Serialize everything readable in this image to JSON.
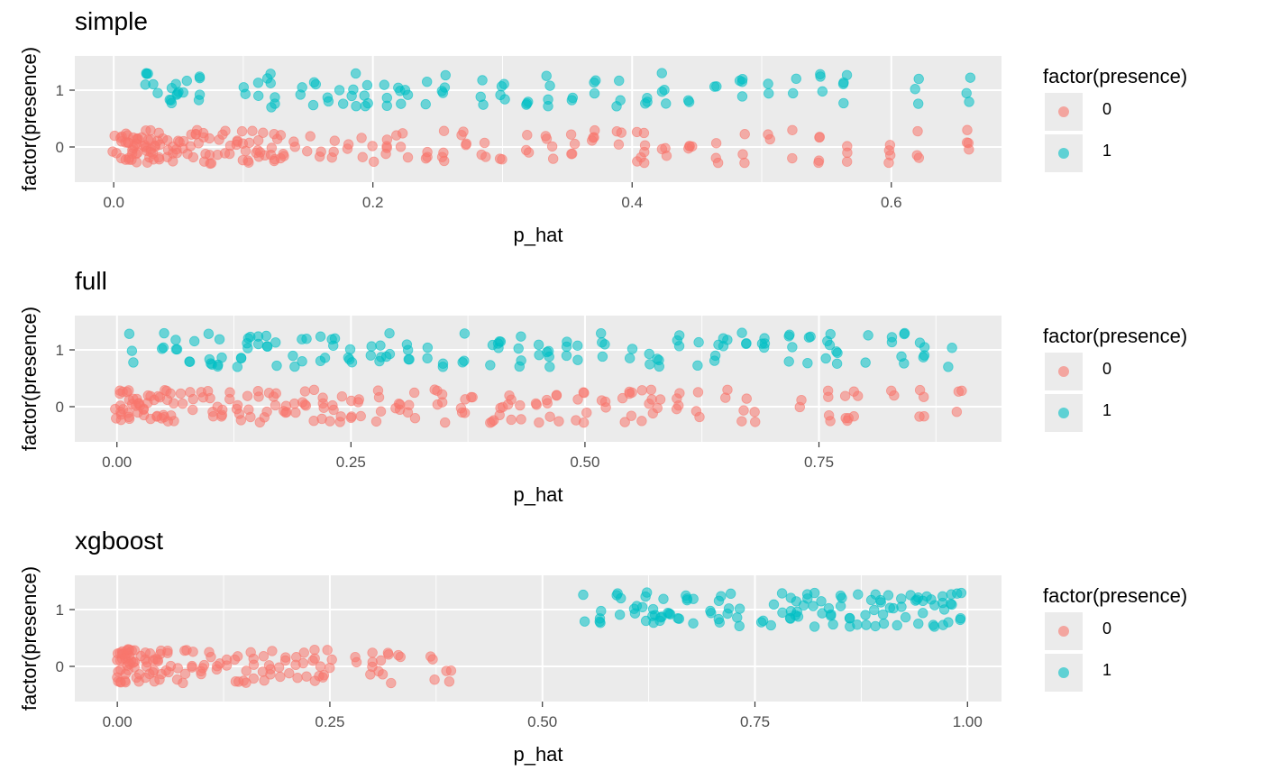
{
  "legend": {
    "title": "factor(presence)",
    "items": [
      {
        "label": "0",
        "color": "#F8766D"
      },
      {
        "label": "1",
        "color": "#00BFC4"
      }
    ]
  },
  "chart_data": [
    {
      "type": "scatter",
      "title": "simple",
      "xlabel": "p_hat",
      "ylabel": "factor(presence)",
      "xlim": [
        -0.03,
        0.685
      ],
      "x_ticks": [
        0.0,
        0.2,
        0.4,
        0.6
      ],
      "x_tick_labels": [
        "0.0",
        "0.2",
        "0.4",
        "0.6"
      ],
      "y_categories": [
        "0",
        "1"
      ],
      "grid": true,
      "legend_position": "right",
      "series": [
        {
          "class": "0",
          "x": [
            0.0,
            0.005,
            0.008,
            0.01,
            0.012,
            0.014,
            0.016,
            0.018,
            0.02,
            0.022,
            0.024,
            0.026,
            0.028,
            0.03,
            0.033,
            0.036,
            0.04,
            0.045,
            0.05,
            0.055,
            0.06,
            0.065,
            0.07,
            0.075,
            0.08,
            0.085,
            0.09,
            0.095,
            0.1,
            0.105,
            0.11,
            0.115,
            0.12,
            0.125,
            0.13,
            0.14,
            0.15,
            0.16,
            0.17,
            0.18,
            0.19,
            0.2,
            0.21,
            0.22,
            0.225,
            0.24,
            0.255,
            0.27,
            0.285,
            0.3,
            0.32,
            0.335,
            0.34,
            0.355,
            0.37,
            0.39,
            0.405,
            0.41,
            0.425,
            0.445,
            0.465,
            0.485,
            0.505,
            0.525,
            0.545,
            0.565,
            0.6,
            0.62,
            0.66
          ]
        },
        {
          "class": "1",
          "x": [
            0.025,
            0.032,
            0.045,
            0.05,
            0.055,
            0.065,
            0.1,
            0.11,
            0.12,
            0.125,
            0.145,
            0.155,
            0.165,
            0.175,
            0.185,
            0.195,
            0.21,
            0.22,
            0.225,
            0.24,
            0.255,
            0.285,
            0.3,
            0.32,
            0.335,
            0.355,
            0.37,
            0.39,
            0.41,
            0.425,
            0.445,
            0.465,
            0.485,
            0.505,
            0.525,
            0.545,
            0.565,
            0.62,
            0.66
          ]
        }
      ]
    },
    {
      "type": "scatter",
      "title": "full",
      "xlabel": "p_hat",
      "ylabel": "factor(presence)",
      "xlim": [
        -0.045,
        0.945
      ],
      "x_ticks": [
        0.0,
        0.25,
        0.5,
        0.75
      ],
      "x_tick_labels": [
        "0.00",
        "0.25",
        "0.50",
        "0.75"
      ],
      "y_categories": [
        "0",
        "1"
      ],
      "grid": true,
      "legend_position": "right",
      "series": [
        {
          "class": "0",
          "x": [
            0.0,
            0.003,
            0.006,
            0.009,
            0.012,
            0.015,
            0.018,
            0.021,
            0.025,
            0.03,
            0.035,
            0.04,
            0.045,
            0.05,
            0.055,
            0.06,
            0.07,
            0.08,
            0.09,
            0.1,
            0.11,
            0.12,
            0.13,
            0.14,
            0.15,
            0.16,
            0.17,
            0.18,
            0.19,
            0.2,
            0.21,
            0.22,
            0.23,
            0.24,
            0.25,
            0.26,
            0.28,
            0.3,
            0.31,
            0.32,
            0.34,
            0.35,
            0.37,
            0.38,
            0.4,
            0.41,
            0.42,
            0.43,
            0.45,
            0.46,
            0.47,
            0.49,
            0.5,
            0.52,
            0.54,
            0.55,
            0.56,
            0.57,
            0.58,
            0.6,
            0.62,
            0.65,
            0.67,
            0.68,
            0.73,
            0.76,
            0.78,
            0.79,
            0.83,
            0.86,
            0.9
          ]
        },
        {
          "class": "1",
          "x": [
            0.015,
            0.05,
            0.065,
            0.08,
            0.1,
            0.11,
            0.13,
            0.14,
            0.15,
            0.16,
            0.17,
            0.19,
            0.2,
            0.22,
            0.23,
            0.25,
            0.27,
            0.28,
            0.29,
            0.31,
            0.33,
            0.35,
            0.37,
            0.4,
            0.41,
            0.43,
            0.45,
            0.46,
            0.48,
            0.49,
            0.52,
            0.55,
            0.57,
            0.58,
            0.6,
            0.62,
            0.64,
            0.65,
            0.67,
            0.69,
            0.72,
            0.74,
            0.76,
            0.77,
            0.8,
            0.83,
            0.84,
            0.86,
            0.89
          ]
        }
      ]
    },
    {
      "type": "scatter",
      "title": "xgboost",
      "xlabel": "p_hat",
      "ylabel": "factor(presence)",
      "xlim": [
        -0.05,
        1.04
      ],
      "x_ticks": [
        0.0,
        0.25,
        0.5,
        0.75,
        1.0
      ],
      "x_tick_labels": [
        "0.00",
        "0.25",
        "0.50",
        "0.75",
        "1.00"
      ],
      "y_categories": [
        "0",
        "1"
      ],
      "grid": true,
      "legend_position": "right",
      "series": [
        {
          "class": "0",
          "x": [
            0.0,
            0.002,
            0.004,
            0.006,
            0.008,
            0.01,
            0.012,
            0.015,
            0.018,
            0.021,
            0.025,
            0.03,
            0.035,
            0.04,
            0.045,
            0.05,
            0.055,
            0.06,
            0.07,
            0.08,
            0.09,
            0.1,
            0.11,
            0.12,
            0.13,
            0.14,
            0.15,
            0.16,
            0.17,
            0.18,
            0.19,
            0.2,
            0.21,
            0.22,
            0.23,
            0.24,
            0.25,
            0.28,
            0.3,
            0.31,
            0.32,
            0.33,
            0.37,
            0.39
          ]
        },
        {
          "class": "1",
          "x": [
            0.55,
            0.57,
            0.59,
            0.61,
            0.62,
            0.63,
            0.64,
            0.65,
            0.66,
            0.67,
            0.68,
            0.7,
            0.71,
            0.72,
            0.73,
            0.76,
            0.77,
            0.78,
            0.79,
            0.8,
            0.81,
            0.82,
            0.83,
            0.84,
            0.85,
            0.86,
            0.87,
            0.88,
            0.89,
            0.9,
            0.91,
            0.92,
            0.93,
            0.94,
            0.95,
            0.96,
            0.97,
            0.98,
            0.99
          ]
        }
      ]
    }
  ]
}
